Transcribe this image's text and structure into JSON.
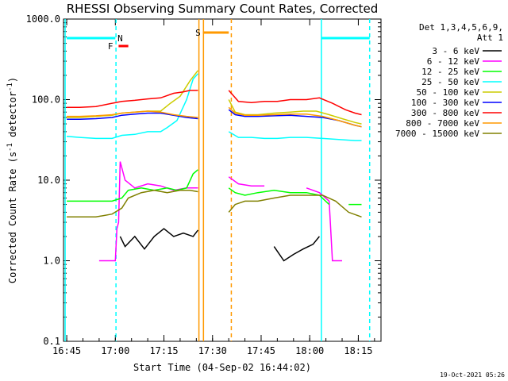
{
  "chart_data": {
    "type": "line",
    "title": "RHESSI Observing Summary Count Rates, Corrected",
    "xlabel": "Start Time (04-Sep-02 16:44:02)",
    "ylabel_main": "Corrected Count Rate (s",
    "ylabel_sup": "-1",
    "ylabel_mid": " detector",
    "ylabel_sup2": "-1",
    "ylabel_end": ")",
    "x_axis": {
      "min_minutes": 0,
      "max_minutes": 98,
      "ticks": [
        {
          "label": "16:45",
          "t": 1
        },
        {
          "label": "17:00",
          "t": 16
        },
        {
          "label": "17:15",
          "t": 31
        },
        {
          "label": "17:30",
          "t": 46
        },
        {
          "label": "17:45",
          "t": 61
        },
        {
          "label": "18:00",
          "t": 76
        },
        {
          "label": "18:15",
          "t": 91
        }
      ]
    },
    "y_axis": {
      "scale": "log",
      "min": 0.1,
      "max": 1000,
      "ticks": [
        {
          "label": "1000.0",
          "v": 1000
        },
        {
          "label": "100.0",
          "v": 100
        },
        {
          "label": "10.0",
          "v": 10
        },
        {
          "label": "1.0",
          "v": 1
        },
        {
          "label": "0.1",
          "v": 0.1
        }
      ]
    },
    "legend": {
      "header_line1": "Det 1,3,4,5,6,9,",
      "header_line2": "Att 1",
      "placement": "right"
    },
    "series": [
      {
        "name": "3 - 6 keV",
        "color": "#000000",
        "points": [
          [
            17.5,
            2
          ],
          [
            19,
            1.5
          ],
          [
            22,
            2
          ],
          [
            25,
            1.4
          ],
          [
            28,
            2
          ],
          [
            31,
            2.5
          ],
          [
            34,
            2
          ],
          [
            37,
            2.2
          ],
          [
            40,
            2
          ],
          [
            41.5,
            2.4
          ],
          [
            65,
            1.5
          ],
          [
            68,
            1
          ],
          [
            71,
            1.2
          ],
          [
            74,
            1.4
          ],
          [
            77,
            1.6
          ],
          [
            79,
            2
          ]
        ]
      },
      {
        "name": "6 - 12 keV",
        "color": "#ff00ff",
        "points": [
          [
            11,
            1
          ],
          [
            16,
            1
          ],
          [
            16.5,
            2.5
          ],
          [
            17,
            3
          ],
          [
            17.5,
            17
          ],
          [
            19,
            10
          ],
          [
            22,
            8
          ],
          [
            26,
            9
          ],
          [
            30,
            8.5
          ],
          [
            34,
            7.5
          ],
          [
            38,
            8
          ],
          [
            41.5,
            8
          ],
          [
            51,
            11
          ],
          [
            54,
            9
          ],
          [
            58,
            8.5
          ],
          [
            62,
            8.5
          ],
          [
            68,
            8
          ],
          [
            75,
            8
          ],
          [
            79,
            7
          ],
          [
            82,
            5.5
          ],
          [
            83,
            1
          ],
          [
            86,
            1
          ]
        ]
      },
      {
        "name": "12 - 25 keV",
        "color": "#00ff00",
        "points": [
          [
            1,
            5.5
          ],
          [
            5,
            5.5
          ],
          [
            10,
            5.5
          ],
          [
            15,
            5.5
          ],
          [
            18,
            6
          ],
          [
            20,
            7.5
          ],
          [
            24,
            8
          ],
          [
            28,
            7.5
          ],
          [
            32,
            8
          ],
          [
            35,
            7.5
          ],
          [
            38,
            8
          ],
          [
            40,
            12
          ],
          [
            41.5,
            13.5
          ],
          [
            51,
            8
          ],
          [
            53,
            7
          ],
          [
            56,
            6.5
          ],
          [
            60,
            7
          ],
          [
            65,
            7.5
          ],
          [
            70,
            7
          ],
          [
            75,
            7
          ],
          [
            79,
            6.5
          ],
          [
            82,
            5
          ],
          [
            88,
            5
          ],
          [
            92,
            5
          ]
        ]
      },
      {
        "name": "25 - 50 keV",
        "color": "#00ffff",
        "points": [
          [
            1,
            35
          ],
          [
            5,
            34
          ],
          [
            10,
            33
          ],
          [
            15,
            33
          ],
          [
            18,
            36
          ],
          [
            22,
            37
          ],
          [
            26,
            40
          ],
          [
            30,
            40
          ],
          [
            32,
            45
          ],
          [
            35,
            55
          ],
          [
            38,
            100
          ],
          [
            40,
            180
          ],
          [
            41.5,
            210
          ],
          [
            51,
            40
          ],
          [
            54,
            34
          ],
          [
            58,
            34
          ],
          [
            62,
            33
          ],
          [
            66,
            33
          ],
          [
            70,
            34
          ],
          [
            75,
            34
          ],
          [
            80,
            33
          ],
          [
            85,
            32
          ],
          [
            90,
            31
          ],
          [
            92,
            31
          ]
        ]
      },
      {
        "name": "50 - 100 keV",
        "color": "#cccc00",
        "points": [
          [
            1,
            60
          ],
          [
            5,
            60
          ],
          [
            10,
            62
          ],
          [
            15,
            64
          ],
          [
            18,
            68
          ],
          [
            22,
            70
          ],
          [
            26,
            72
          ],
          [
            30,
            72
          ],
          [
            33,
            90
          ],
          [
            36,
            110
          ],
          [
            39,
            170
          ],
          [
            41.5,
            230
          ],
          [
            51,
            100
          ],
          [
            53,
            70
          ],
          [
            56,
            65
          ],
          [
            60,
            65
          ],
          [
            65,
            68
          ],
          [
            70,
            70
          ],
          [
            74,
            72
          ],
          [
            78,
            72
          ],
          [
            82,
            65
          ],
          [
            86,
            58
          ],
          [
            90,
            52
          ],
          [
            92,
            50
          ]
        ]
      },
      {
        "name": "100 - 300 keV",
        "color": "#0000ff",
        "points": [
          [
            1,
            57
          ],
          [
            5,
            57
          ],
          [
            10,
            58
          ],
          [
            15,
            60
          ],
          [
            18,
            64
          ],
          [
            22,
            66
          ],
          [
            26,
            68
          ],
          [
            30,
            68
          ],
          [
            34,
            64
          ],
          [
            38,
            60
          ],
          [
            41.5,
            58
          ],
          [
            51,
            75
          ],
          [
            53,
            65
          ],
          [
            56,
            62
          ],
          [
            60,
            62
          ],
          [
            65,
            63
          ],
          [
            70,
            64
          ],
          [
            75,
            62
          ],
          [
            80,
            60
          ],
          [
            85,
            55
          ],
          [
            90,
            48
          ],
          [
            92,
            46
          ]
        ]
      },
      {
        "name": "300 - 800 keV",
        "color": "#ff0000",
        "points": [
          [
            1,
            80
          ],
          [
            5,
            80
          ],
          [
            10,
            82
          ],
          [
            15,
            90
          ],
          [
            18,
            95
          ],
          [
            22,
            98
          ],
          [
            26,
            102
          ],
          [
            30,
            105
          ],
          [
            34,
            120
          ],
          [
            37,
            125
          ],
          [
            39,
            130
          ],
          [
            41.5,
            130
          ],
          [
            51,
            130
          ],
          [
            54,
            95
          ],
          [
            58,
            92
          ],
          [
            62,
            95
          ],
          [
            66,
            95
          ],
          [
            70,
            100
          ],
          [
            75,
            100
          ],
          [
            79,
            105
          ],
          [
            83,
            90
          ],
          [
            87,
            75
          ],
          [
            90,
            68
          ],
          [
            92,
            65
          ]
        ]
      },
      {
        "name": "800 - 7000 keV",
        "color": "#ff9900",
        "points": [
          [
            1,
            62
          ],
          [
            5,
            62
          ],
          [
            10,
            63
          ],
          [
            15,
            65
          ],
          [
            18,
            68
          ],
          [
            22,
            70
          ],
          [
            26,
            72
          ],
          [
            30,
            70
          ],
          [
            34,
            65
          ],
          [
            38,
            62
          ],
          [
            41.5,
            60
          ],
          [
            51,
            80
          ],
          [
            53,
            68
          ],
          [
            56,
            64
          ],
          [
            60,
            64
          ],
          [
            65,
            65
          ],
          [
            70,
            66
          ],
          [
            75,
            66
          ],
          [
            80,
            62
          ],
          [
            85,
            55
          ],
          [
            90,
            48
          ],
          [
            92,
            46
          ]
        ]
      },
      {
        "name": "7000 - 15000 keV",
        "color": "#808000",
        "points": [
          [
            1,
            3.5
          ],
          [
            5,
            3.5
          ],
          [
            10,
            3.5
          ],
          [
            15,
            3.8
          ],
          [
            18,
            4.5
          ],
          [
            20,
            6
          ],
          [
            24,
            7
          ],
          [
            28,
            7.5
          ],
          [
            32,
            7
          ],
          [
            36,
            7.5
          ],
          [
            39,
            7.5
          ],
          [
            41.5,
            7.2
          ],
          [
            51,
            4
          ],
          [
            53,
            5
          ],
          [
            56,
            5.5
          ],
          [
            60,
            5.5
          ],
          [
            65,
            6
          ],
          [
            70,
            6.5
          ],
          [
            75,
            6.5
          ],
          [
            80,
            6.5
          ],
          [
            84,
            5.5
          ],
          [
            88,
            4
          ],
          [
            92,
            3.5
          ]
        ]
      }
    ],
    "annotations": [
      {
        "label": "N",
        "color": "#00ffff",
        "t": 17.5,
        "bar_start": 1,
        "bar_end": 16
      },
      {
        "label": "F",
        "color": "#ff0000",
        "t": 14.5,
        "bar_start": 17,
        "bar_end": 20
      },
      {
        "label": "S",
        "color": "#ff9900",
        "t": 41.5,
        "bar_start": 43,
        "bar_end": 51
      }
    ],
    "vlines": [
      {
        "color": "#00ffff",
        "t": 0.5,
        "style": "solid"
      },
      {
        "color": "#00ffff",
        "t": 16.2,
        "style": "dashed"
      },
      {
        "color": "#ff9900",
        "t": 41.8,
        "style": "solid"
      },
      {
        "color": "#ff9900",
        "t": 43.2,
        "style": "solid"
      },
      {
        "color": "#ff9900",
        "t": 51.8,
        "style": "dashed"
      },
      {
        "color": "#00ffff",
        "t": 79.6,
        "style": "solid"
      },
      {
        "color": "#00ffff",
        "t": 94.5,
        "style": "dashed"
      }
    ],
    "date_stamp": "19-Oct-2021 05:26"
  }
}
